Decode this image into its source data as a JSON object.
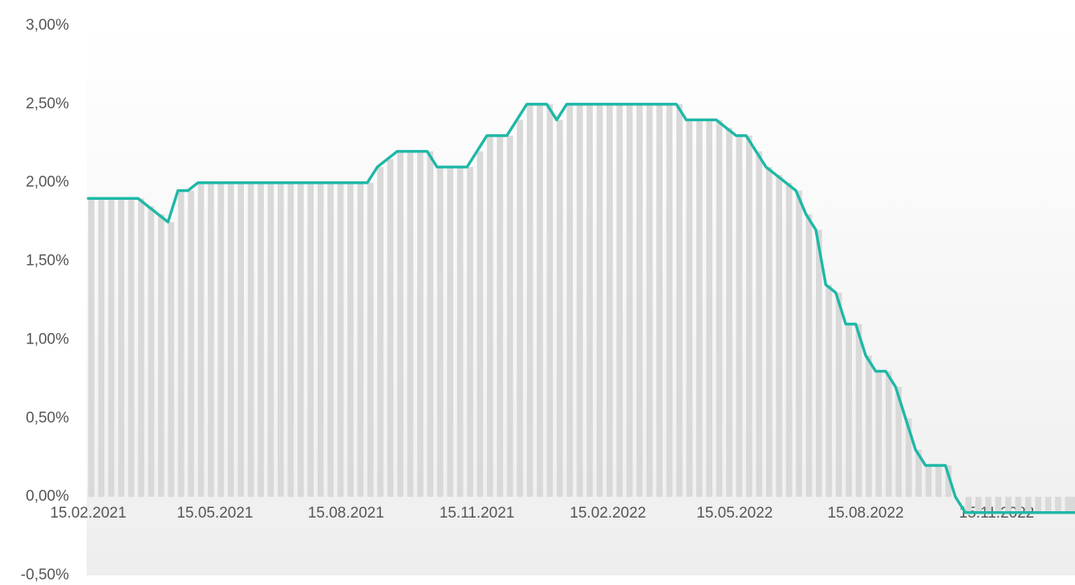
{
  "chart_data": {
    "type": "line",
    "x": [
      "15.02.2021",
      "22.02.2021",
      "01.03.2021",
      "08.03.2021",
      "15.03.2021",
      "22.03.2021",
      "29.03.2021",
      "05.04.2021",
      "12.04.2021",
      "19.04.2021",
      "26.04.2021",
      "03.05.2021",
      "10.05.2021",
      "17.05.2021",
      "24.05.2021",
      "31.05.2021",
      "07.06.2021",
      "14.06.2021",
      "21.06.2021",
      "28.06.2021",
      "05.07.2021",
      "12.07.2021",
      "19.07.2021",
      "26.07.2021",
      "02.08.2021",
      "09.08.2021",
      "16.08.2021",
      "23.08.2021",
      "30.08.2021",
      "06.09.2021",
      "13.09.2021",
      "20.09.2021",
      "27.09.2021",
      "04.10.2021",
      "11.10.2021",
      "18.10.2021",
      "25.10.2021",
      "01.11.2021",
      "08.11.2021",
      "15.11.2021",
      "22.11.2021",
      "29.11.2021",
      "06.12.2021",
      "13.12.2021",
      "20.12.2021",
      "27.12.2021",
      "03.01.2022",
      "10.01.2022",
      "17.01.2022",
      "24.01.2022",
      "31.01.2022",
      "07.02.2022",
      "14.02.2022",
      "21.02.2022",
      "28.02.2022",
      "07.03.2022",
      "14.03.2022",
      "21.03.2022",
      "28.03.2022",
      "04.04.2022",
      "11.04.2022",
      "18.04.2022",
      "25.04.2022",
      "02.05.2022",
      "09.05.2022",
      "16.05.2022",
      "23.05.2022",
      "30.05.2022",
      "06.06.2022",
      "13.06.2022",
      "20.06.2022",
      "27.06.2022",
      "04.07.2022",
      "11.07.2022",
      "18.07.2022",
      "25.07.2022",
      "01.08.2022",
      "08.08.2022",
      "15.08.2022",
      "22.08.2022",
      "29.08.2022",
      "05.09.2022",
      "12.09.2022",
      "19.09.2022",
      "26.09.2022",
      "03.10.2022",
      "10.10.2022",
      "17.10.2022",
      "24.10.2022",
      "31.10.2022",
      "07.11.2022",
      "14.11.2022",
      "21.11.2022",
      "28.11.2022",
      "05.12.2022",
      "12.12.2022",
      "19.12.2022",
      "26.12.2022",
      "02.01.2023",
      "09.01.2023"
    ],
    "series": [
      {
        "color": "#1fb8a6",
        "bar_color": "#d9d9d9",
        "values": [
          1.9,
          1.9,
          1.9,
          1.9,
          1.9,
          1.9,
          1.85,
          1.8,
          1.75,
          1.95,
          1.95,
          2.0,
          2.0,
          2.0,
          2.0,
          2.0,
          2.0,
          2.0,
          2.0,
          2.0,
          2.0,
          2.0,
          2.0,
          2.0,
          2.0,
          2.0,
          2.0,
          2.0,
          2.0,
          2.1,
          2.15,
          2.2,
          2.2,
          2.2,
          2.2,
          2.1,
          2.1,
          2.1,
          2.1,
          2.2,
          2.3,
          2.3,
          2.3,
          2.4,
          2.5,
          2.5,
          2.5,
          2.4,
          2.5,
          2.5,
          2.5,
          2.5,
          2.5,
          2.5,
          2.5,
          2.5,
          2.5,
          2.5,
          2.5,
          2.5,
          2.4,
          2.4,
          2.4,
          2.4,
          2.35,
          2.3,
          2.3,
          2.2,
          2.1,
          2.05,
          2.0,
          1.95,
          1.8,
          1.7,
          1.35,
          1.3,
          1.1,
          1.1,
          0.9,
          0.8,
          0.8,
          0.7,
          0.5,
          0.3,
          0.2,
          0.2,
          0.2,
          0.0,
          -0.1,
          -0.1,
          -0.1,
          -0.1,
          -0.1,
          -0.1,
          -0.1,
          -0.1,
          -0.1,
          -0.1,
          -0.1,
          -0.1
        ]
      }
    ],
    "xlim": [
      "15.02.2021",
      "09.01.2023"
    ],
    "xticks": [
      "15.02.2021",
      "15.05.2021",
      "15.08.2021",
      "15.11.2021",
      "15.02.2022",
      "15.05.2022",
      "15.08.2022",
      "15.11.2022"
    ],
    "ylim": [
      -0.5,
      3
    ],
    "yticks": [
      {
        "value": -0.5,
        "label": "-0,50%"
      },
      {
        "value": 0,
        "label": "0,00%"
      },
      {
        "value": 0.5,
        "label": "0,50%"
      },
      {
        "value": 1,
        "label": "1,00%"
      },
      {
        "value": 1.5,
        "label": "1,50%"
      },
      {
        "value": 2,
        "label": "2,00%"
      },
      {
        "value": 2.5,
        "label": "2,50%"
      },
      {
        "value": 3,
        "label": "3,00%"
      }
    ],
    "grid": false
  }
}
